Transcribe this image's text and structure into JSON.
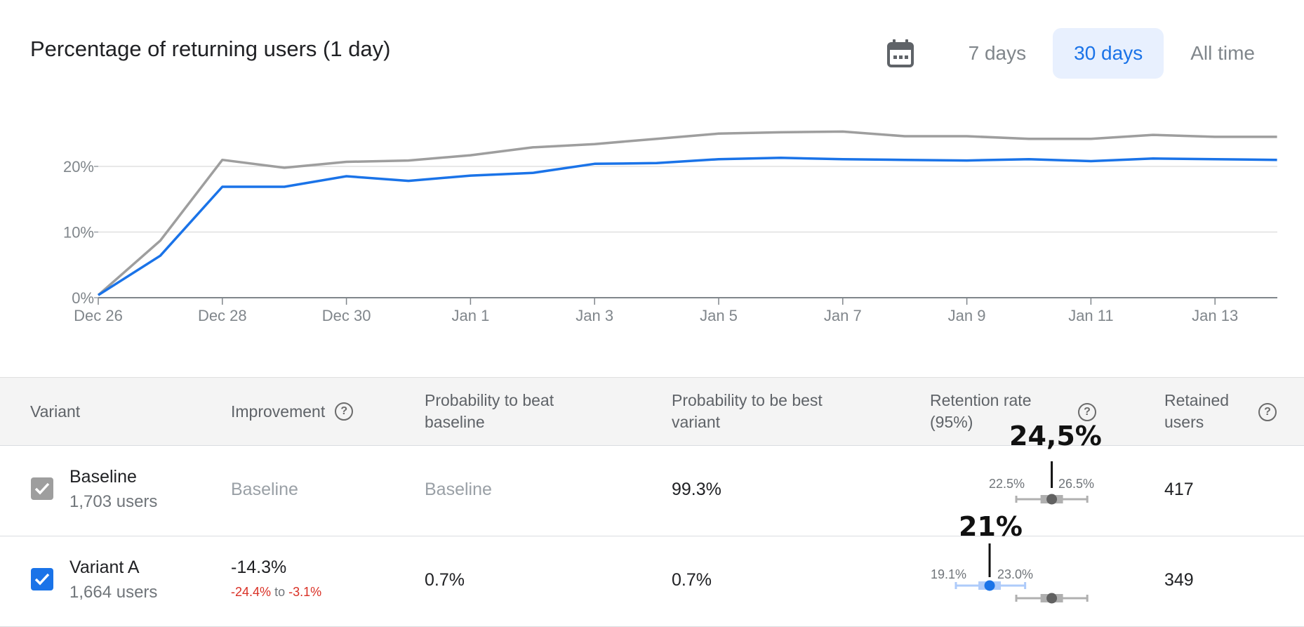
{
  "title": "Percentage of returning users (1 day)",
  "toolbar": {
    "calendar_icon": "calendar-icon",
    "ranges": [
      "7 days",
      "30 days",
      "All time"
    ],
    "selected": "30 days"
  },
  "chart_data": {
    "type": "line",
    "x": [
      "Dec 26",
      "Dec 27",
      "Dec 28",
      "Dec 29",
      "Dec 30",
      "Dec 31",
      "Jan 1",
      "Jan 2",
      "Jan 3",
      "Jan 4",
      "Jan 5",
      "Jan 6",
      "Jan 7",
      "Jan 8",
      "Jan 9",
      "Jan 10",
      "Jan 11",
      "Jan 12",
      "Jan 13",
      "Jan 14"
    ],
    "x_tick_labels": [
      "Dec 26",
      "Dec 28",
      "Dec 30",
      "Jan 1",
      "Jan 3",
      "Jan 5",
      "Jan 7",
      "Jan 9",
      "Jan 11",
      "Jan 13"
    ],
    "y_tick_labels": [
      "0%",
      "10%",
      "20%"
    ],
    "ylim": [
      0,
      25
    ],
    "grid": true,
    "series": [
      {
        "color": "#9e9e9e",
        "values": [
          0.4,
          8.7,
          21.0,
          19.8,
          20.7,
          20.9,
          21.7,
          22.9,
          23.4,
          24.2,
          25.0,
          25.2,
          25.3,
          24.6,
          24.6,
          24.2,
          24.2,
          24.8,
          24.5,
          24.5
        ]
      },
      {
        "color": "#1a73e8",
        "values": [
          0.4,
          6.4,
          16.9,
          16.9,
          18.5,
          17.8,
          18.6,
          19.0,
          20.4,
          20.5,
          21.1,
          21.3,
          21.1,
          21.0,
          20.9,
          21.1,
          20.8,
          21.2,
          21.1,
          21.0
        ]
      }
    ]
  },
  "table": {
    "headers": {
      "variant": "Variant",
      "improvement": "Improvement",
      "prob_beat_l1": "Probability to beat",
      "prob_beat_l2": "baseline",
      "prob_best_l1": "Probability to be best",
      "prob_best_l2": "variant",
      "retention_l1": "Retention rate",
      "retention_l2": "(95%)",
      "retained_l1": "Retained",
      "retained_l2": "users"
    },
    "help_glyph": "?",
    "rows": [
      {
        "name": "Baseline",
        "users": "1,703 users",
        "checked": true,
        "check_color": "#9e9e9e",
        "improvement": "Baseline",
        "prob_beat": "Baseline",
        "prob_best": "99.3%",
        "ci_low": "22.5%",
        "ci_high": "26.5%",
        "retained": "417",
        "annotation": "24,5%",
        "ci": {
          "low": 22.5,
          "high": 26.5,
          "mean": 24.5
        }
      },
      {
        "name": "Variant A",
        "users": "1,664 users",
        "checked": true,
        "check_color": "#1a73e8",
        "improvement": "-14.3%",
        "improvement_range_low": "-24.4%",
        "improvement_range_to": "to",
        "improvement_range_high": "-3.1%",
        "prob_beat": "0.7%",
        "prob_best": "0.7%",
        "ci_low": "19.1%",
        "ci_high": "23.0%",
        "retained": "349",
        "annotation": "21%",
        "ci": {
          "low": 19.1,
          "high": 23.0,
          "mean": 21.0
        }
      }
    ]
  }
}
